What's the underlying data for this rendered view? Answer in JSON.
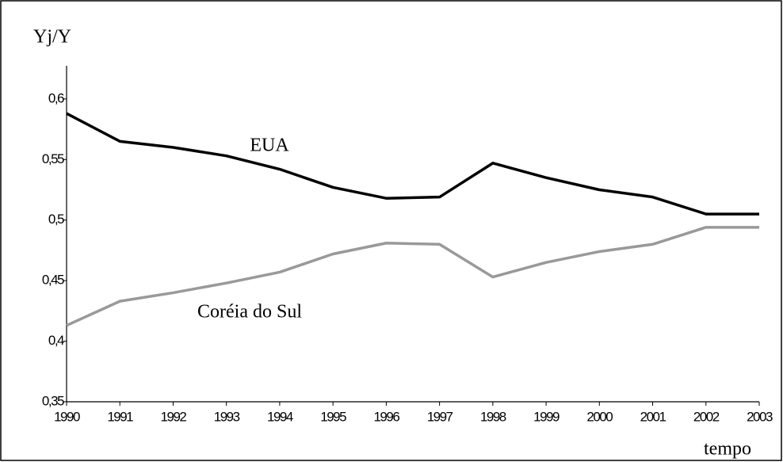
{
  "chart_data": {
    "type": "line",
    "y_label": "Yj/Y",
    "x_label": "tempo",
    "x": [
      1990,
      1991,
      1992,
      1993,
      1994,
      1995,
      1996,
      1997,
      1998,
      1999,
      2000,
      2001,
      2002,
      2003
    ],
    "xlim": [
      1990,
      2003
    ],
    "xticks": [
      1990,
      1991,
      1992,
      1993,
      1994,
      1995,
      1996,
      1997,
      1998,
      1999,
      2000,
      2001,
      2002,
      2003
    ],
    "ylim": [
      0.35,
      0.63
    ],
    "yticks": [
      {
        "value": 0.35,
        "label": "0,35"
      },
      {
        "value": 0.4,
        "label": "0,4"
      },
      {
        "value": 0.45,
        "label": "0,45"
      },
      {
        "value": 0.5,
        "label": "0,5"
      },
      {
        "value": 0.55,
        "label": "0,55"
      },
      {
        "value": 0.6,
        "label": "0,6"
      }
    ],
    "grid": false,
    "series": [
      {
        "name": "EUA",
        "color": "#000000",
        "values": [
          0.588,
          0.565,
          0.56,
          0.553,
          0.542,
          0.527,
          0.518,
          0.519,
          0.547,
          0.535,
          0.525,
          0.519,
          0.505,
          0.505
        ]
      },
      {
        "name": "Coréia do Sul",
        "color": "#999999",
        "values": [
          0.413,
          0.433,
          0.44,
          0.448,
          0.457,
          0.472,
          0.481,
          0.48,
          0.453,
          0.465,
          0.474,
          0.48,
          0.494,
          0.494
        ]
      }
    ]
  }
}
